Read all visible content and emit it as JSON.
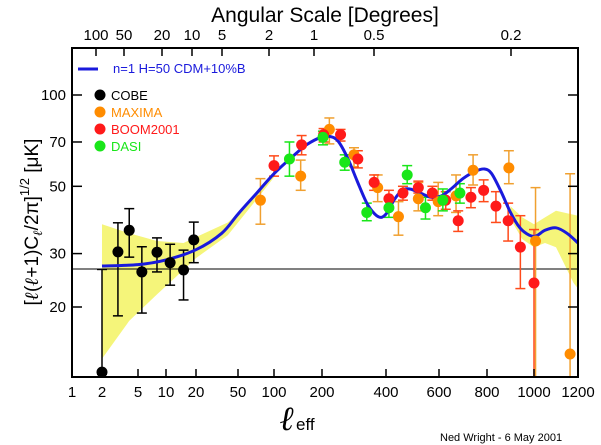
{
  "chart_data": {
    "type": "scatter",
    "title": "Angular Scale [Degrees]",
    "xlabel": "l_eff",
    "xlabel_main": "ℓ",
    "xlabel_sub": "eff",
    "ylabel": "[l(l+1)C_l/2π]^1/2 [μK]",
    "ylabel_parts": {
      "open": "[",
      "l1": "ℓ",
      "mid1": "(",
      "l2": "ℓ",
      "mid2": "+1)C",
      "lsub": "ℓ",
      "mid3": "/2π]",
      "sup": "1/2",
      "unit": " [μK]"
    },
    "credit": "Ned Wright - 6 May 2001",
    "x_scale": "piecewise (log at low l, linear at high l)",
    "xlim": [
      1,
      1200
    ],
    "ylim": [
      11.75,
      143
    ],
    "y_scale": "log",
    "x_ticks": [
      1,
      2,
      5,
      10,
      20,
      50,
      100,
      200,
      400,
      600,
      800,
      1000,
      1200
    ],
    "x_tick_labels": [
      "1",
      "2",
      "5",
      "10",
      "20",
      "50",
      "100",
      "200",
      "400",
      "600",
      "800",
      "1000",
      "1200"
    ],
    "y_ticks": [
      20,
      30,
      50,
      70,
      100
    ],
    "y_tick_labels": [
      "20",
      "30",
      "50",
      "70",
      "100"
    ],
    "top_axis": {
      "label": "Angular Scale [Degrees]",
      "ticks": [
        {
          "label": "100",
          "l": 1.8
        },
        {
          "label": "50",
          "l": 3.6
        },
        {
          "label": "20",
          "l": 9
        },
        {
          "label": "10",
          "l": 18
        },
        {
          "label": "5",
          "l": 36
        },
        {
          "label": "2",
          "l": 90
        },
        {
          "label": "1",
          "l": 180
        },
        {
          "label": "0.5",
          "l": 360
        },
        {
          "label": "0.2",
          "l": 900
        }
      ]
    },
    "reference_line": {
      "y": 26.7,
      "color": "#000000"
    },
    "legend": {
      "placement": "top-left",
      "model": {
        "label": "n=1 H=50 CDM+10%B",
        "color": "#1a1adc"
      },
      "entries": [
        {
          "name": "COBE",
          "color": "#000000"
        },
        {
          "name": "MAXIMA",
          "color": "#ff8c00"
        },
        {
          "name": "BOOM2001",
          "color": "#ff1a1a"
        },
        {
          "name": "DASI",
          "color": "#19e619"
        }
      ]
    },
    "model_curve": {
      "name": "n=1 H=50 CDM+10%B",
      "color": "#1a1adc",
      "points": [
        [
          2,
          27.3
        ],
        [
          5,
          27.6
        ],
        [
          10,
          28.6
        ],
        [
          20,
          30.9
        ],
        [
          35,
          35.0
        ],
        [
          50,
          40.5
        ],
        [
          70,
          47.0
        ],
        [
          100,
          55.0
        ],
        [
          130,
          62.5
        ],
        [
          160,
          68.5
        ],
        [
          200,
          72.8
        ],
        [
          225,
          73.0
        ],
        [
          250,
          70.5
        ],
        [
          280,
          62.0
        ],
        [
          310,
          52.0
        ],
        [
          340,
          44.0
        ],
        [
          365,
          40.5
        ],
        [
          385,
          39.5
        ],
        [
          405,
          41.0
        ],
        [
          430,
          45.0
        ],
        [
          460,
          48.5
        ],
        [
          490,
          49.0
        ],
        [
          530,
          47.5
        ],
        [
          570,
          46.0
        ],
        [
          610,
          46.5
        ],
        [
          650,
          49.0
        ],
        [
          700,
          53.0
        ],
        [
          750,
          56.0
        ],
        [
          790,
          57.0
        ],
        [
          820,
          55.0
        ],
        [
          860,
          48.0
        ],
        [
          900,
          41.0
        ],
        [
          940,
          36.5
        ],
        [
          980,
          34.5
        ],
        [
          1010,
          34.3
        ],
        [
          1050,
          35.8
        ],
        [
          1100,
          36.5
        ],
        [
          1150,
          35.0
        ],
        [
          1200,
          32.5
        ]
      ]
    },
    "uncertainty_band": {
      "color": "#f5f57a",
      "upper": [
        [
          2,
          37.5
        ],
        [
          4,
          35.0
        ],
        [
          8,
          33.0
        ],
        [
          15,
          32.5
        ],
        [
          20,
          34.0
        ],
        [
          40,
          38.0
        ],
        [
          60,
          43.5
        ],
        [
          100,
          54.5
        ]
      ],
      "lower": [
        [
          2,
          13.5
        ],
        [
          4,
          18.0
        ],
        [
          8,
          22.0
        ],
        [
          15,
          26.5
        ],
        [
          20,
          29.0
        ],
        [
          40,
          34.5
        ],
        [
          60,
          41.5
        ],
        [
          100,
          53.5
        ]
      ],
      "upper_high": [
        [
          900,
          43.0
        ],
        [
          950,
          39.5
        ],
        [
          1000,
          37.5
        ],
        [
          1050,
          39.5
        ],
        [
          1100,
          41.5
        ],
        [
          1200,
          40.0
        ]
      ],
      "lower_high": [
        [
          900,
          39.0
        ],
        [
          950,
          33.5
        ],
        [
          1000,
          31.5
        ],
        [
          1050,
          32.5
        ],
        [
          1100,
          31.5
        ],
        [
          1180,
          24.0
        ],
        [
          1200,
          23.0
        ]
      ]
    },
    "series": [
      {
        "name": "COBE",
        "color": "#000000",
        "points": [
          {
            "x": 2,
            "y": 12.2,
            "lo": 12.0,
            "hi": 26.6
          },
          {
            "x": 3,
            "y": 30.4,
            "lo": 18.7,
            "hi": 37.9
          },
          {
            "x": 4,
            "y": 35.8,
            "lo": 29.2,
            "hi": 42.2
          },
          {
            "x": 5.5,
            "y": 26.1,
            "lo": 19.1,
            "hi": 31.6
          },
          {
            "x": 8,
            "y": 30.3,
            "lo": 26.1,
            "hi": 33.8
          },
          {
            "x": 11,
            "y": 28.0,
            "lo": 23.6,
            "hi": 32.2
          },
          {
            "x": 15,
            "y": 26.5,
            "lo": 21.1,
            "hi": 30.8
          },
          {
            "x": 19,
            "y": 33.3,
            "lo": 28.0,
            "hi": 38.1
          }
        ]
      },
      {
        "name": "MAXIMA",
        "color": "#ff8c00",
        "points": [
          {
            "x": 77,
            "y": 45.0,
            "lo": 37.5,
            "hi": 53.0
          },
          {
            "x": 147,
            "y": 54.0,
            "lo": 48.5,
            "hi": 61.0
          },
          {
            "x": 223,
            "y": 77.0,
            "lo": 69.0,
            "hi": 84.0
          },
          {
            "x": 300,
            "y": 63.5,
            "lo": 58.0,
            "hi": 67.0
          },
          {
            "x": 374,
            "y": 49.5,
            "lo": 44.5,
            "hi": 54.5
          },
          {
            "x": 447,
            "y": 39.7,
            "lo": 34.5,
            "hi": 44.5
          },
          {
            "x": 522,
            "y": 45.5,
            "lo": 41.5,
            "hi": 51.5
          },
          {
            "x": 597,
            "y": 44.5,
            "lo": 40.0,
            "hi": 51.5
          },
          {
            "x": 671,
            "y": 46.5,
            "lo": 41.0,
            "hi": 54.5
          },
          {
            "x": 742,
            "y": 56.5,
            "lo": 50.5,
            "hi": 63.5
          },
          {
            "x": 893,
            "y": 57.5,
            "lo": 51.0,
            "hi": 65.5
          },
          {
            "x": 1007,
            "y": 33.0,
            "lo": 11.8,
            "hi": 49.5
          },
          {
            "x": 1164,
            "y": 14.0,
            "lo": 11.8,
            "hi": 55.0
          }
        ]
      },
      {
        "name": "BOOM2001",
        "color": "#ff1a1a",
        "points": [
          {
            "x": 100,
            "y": 58.5,
            "lo": 54.0,
            "hi": 63.0
          },
          {
            "x": 149,
            "y": 68.5,
            "lo": 63.5,
            "hi": 73.5
          },
          {
            "x": 205,
            "y": 74.0,
            "lo": 70.0,
            "hi": 77.5
          },
          {
            "x": 258,
            "y": 74.0,
            "lo": 70.5,
            "hi": 77.0
          },
          {
            "x": 312,
            "y": 61.5,
            "lo": 57.5,
            "hi": 65.5
          },
          {
            "x": 363,
            "y": 51.5,
            "lo": 48.5,
            "hi": 54.5
          },
          {
            "x": 411,
            "y": 45.5,
            "lo": 42.5,
            "hi": 48.5
          },
          {
            "x": 464,
            "y": 47.5,
            "lo": 45.0,
            "hi": 50.0
          },
          {
            "x": 522,
            "y": 49.5,
            "lo": 47.5,
            "hi": 52.0
          },
          {
            "x": 575,
            "y": 47.5,
            "lo": 45.0,
            "hi": 50.0
          },
          {
            "x": 628,
            "y": 45.0,
            "lo": 42.0,
            "hi": 48.0
          },
          {
            "x": 680,
            "y": 38.5,
            "lo": 35.5,
            "hi": 41.5
          },
          {
            "x": 733,
            "y": 46.0,
            "lo": 42.5,
            "hi": 49.5
          },
          {
            "x": 786,
            "y": 48.5,
            "lo": 44.5,
            "hi": 52.5
          },
          {
            "x": 838,
            "y": 43.0,
            "lo": 38.0,
            "hi": 48.0
          },
          {
            "x": 890,
            "y": 38.5,
            "lo": 33.0,
            "hi": 44.0
          },
          {
            "x": 942,
            "y": 31.5,
            "lo": 23.0,
            "hi": 40.0
          },
          {
            "x": 1000,
            "y": 24.0,
            "lo": 11.8,
            "hi": 36.0
          }
        ]
      },
      {
        "name": "DASI",
        "color": "#19e619",
        "points": [
          {
            "x": 125,
            "y": 61.5,
            "lo": 54.0,
            "hi": 70.0
          },
          {
            "x": 203,
            "y": 72.5,
            "lo": 68.5,
            "hi": 76.0
          },
          {
            "x": 271,
            "y": 60.0,
            "lo": 56.5,
            "hi": 63.5
          },
          {
            "x": 340,
            "y": 41.0,
            "lo": 38.5,
            "hi": 44.0
          },
          {
            "x": 411,
            "y": 42.5,
            "lo": 39.5,
            "hi": 46.0
          },
          {
            "x": 480,
            "y": 54.5,
            "lo": 51.0,
            "hi": 58.5
          },
          {
            "x": 549,
            "y": 42.5,
            "lo": 39.0,
            "hi": 46.0
          },
          {
            "x": 616,
            "y": 45.0,
            "lo": 41.5,
            "hi": 49.0
          },
          {
            "x": 687,
            "y": 47.5,
            "lo": 44.0,
            "hi": 51.0
          }
        ]
      }
    ]
  }
}
